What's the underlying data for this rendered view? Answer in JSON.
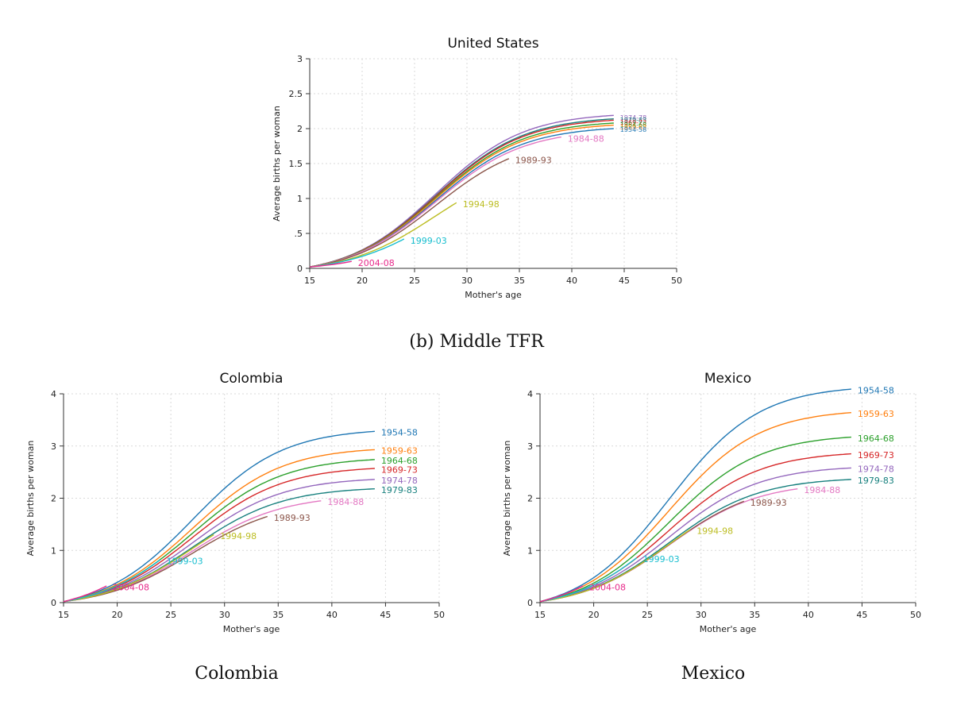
{
  "section_caption": "(b) Middle TFR",
  "bottom_captions": [
    "Colombia",
    "Mexico"
  ],
  "colors": {
    "1954-58": "#1f77b4",
    "1959-63": "#ff7f0e",
    "1964-68": "#2ca02c",
    "1969-73": "#d62728",
    "1974-78": "#9467bd",
    "1979-83": "#17807e",
    "1984-88": "#e377c2",
    "1989-93": "#8c564b",
    "1994-98": "#bcbd22",
    "1999-03": "#17becf",
    "2004-08": "#e7298a"
  },
  "chart_data": [
    {
      "type": "line",
      "title": "United States",
      "xlabel": "Mother's age",
      "ylabel": "Average births per woman",
      "xlim": [
        15,
        50
      ],
      "ylim": [
        0,
        3
      ],
      "xticks": [
        "15",
        "20",
        "25",
        "30",
        "35",
        "40",
        "45",
        "50"
      ],
      "yticks": [
        "0",
        ".5",
        "1",
        "1.5",
        "2",
        "2.5",
        "3"
      ],
      "grid": true,
      "series": [
        {
          "name": "1974-78",
          "end_age": 44,
          "final": 2.17
        },
        {
          "name": "1979-83",
          "end_age": 44,
          "final": 2.12
        },
        {
          "name": "1969-73",
          "end_age": 44,
          "final": 2.1
        },
        {
          "name": "1964-68",
          "end_age": 44,
          "final": 2.06
        },
        {
          "name": "1959-63",
          "end_age": 44,
          "final": 2.03
        },
        {
          "name": "1954-58",
          "end_age": 44,
          "final": 1.98
        },
        {
          "name": "1984-88",
          "end_age": 39,
          "final": 1.86
        },
        {
          "name": "1989-93",
          "end_age": 34,
          "final": 1.55
        },
        {
          "name": "1994-98",
          "end_age": 29,
          "final": 0.92
        },
        {
          "name": "1999-03",
          "end_age": 24,
          "final": 0.4
        },
        {
          "name": "2004-08",
          "end_age": 19,
          "final": 0.08
        }
      ]
    },
    {
      "type": "line",
      "title": "Colombia",
      "xlabel": "Mother's age",
      "ylabel": "Average births per woman",
      "xlim": [
        15,
        50
      ],
      "ylim": [
        0,
        4
      ],
      "xticks": [
        "15",
        "20",
        "25",
        "30",
        "35",
        "40",
        "45",
        "50"
      ],
      "yticks": [
        "0",
        "1",
        "2",
        "3",
        "4"
      ],
      "grid": true,
      "series": [
        {
          "name": "1954-58",
          "end_age": 44,
          "final": 3.26
        },
        {
          "name": "1959-63",
          "end_age": 44,
          "final": 2.91
        },
        {
          "name": "1964-68",
          "end_age": 44,
          "final": 2.72
        },
        {
          "name": "1969-73",
          "end_age": 44,
          "final": 2.55
        },
        {
          "name": "1974-78",
          "end_age": 44,
          "final": 2.34
        },
        {
          "name": "1979-83",
          "end_age": 44,
          "final": 2.16
        },
        {
          "name": "1984-88",
          "end_age": 39,
          "final": 1.93
        },
        {
          "name": "1989-93",
          "end_age": 34,
          "final": 1.63
        },
        {
          "name": "1994-98",
          "end_age": 29,
          "final": 1.28
        },
        {
          "name": "1999-03",
          "end_age": 24,
          "final": 0.8
        },
        {
          "name": "2004-08",
          "end_age": 19,
          "final": 0.3
        }
      ]
    },
    {
      "type": "line",
      "title": "Mexico",
      "xlabel": "Mother's age",
      "ylabel": "Average births per woman",
      "xlim": [
        15,
        50
      ],
      "ylim": [
        0,
        4
      ],
      "xticks": [
        "15",
        "20",
        "25",
        "30",
        "35",
        "40",
        "45",
        "50"
      ],
      "yticks": [
        "0",
        "1",
        "2",
        "3",
        "4"
      ],
      "grid": true,
      "series": [
        {
          "name": "1954-58",
          "end_age": 44,
          "final": 4.07
        },
        {
          "name": "1959-63",
          "end_age": 44,
          "final": 3.62
        },
        {
          "name": "1964-68",
          "end_age": 44,
          "final": 3.15
        },
        {
          "name": "1969-73",
          "end_age": 44,
          "final": 2.83
        },
        {
          "name": "1974-78",
          "end_age": 44,
          "final": 2.56
        },
        {
          "name": "1979-83",
          "end_age": 44,
          "final": 2.34
        },
        {
          "name": "1984-88",
          "end_age": 39,
          "final": 2.16
        },
        {
          "name": "1989-93",
          "end_age": 34,
          "final": 1.92
        },
        {
          "name": "1994-98",
          "end_age": 29,
          "final": 1.38
        },
        {
          "name": "1999-03",
          "end_age": 24,
          "final": 0.84
        },
        {
          "name": "2004-08",
          "end_age": 19,
          "final": 0.3
        }
      ]
    }
  ]
}
